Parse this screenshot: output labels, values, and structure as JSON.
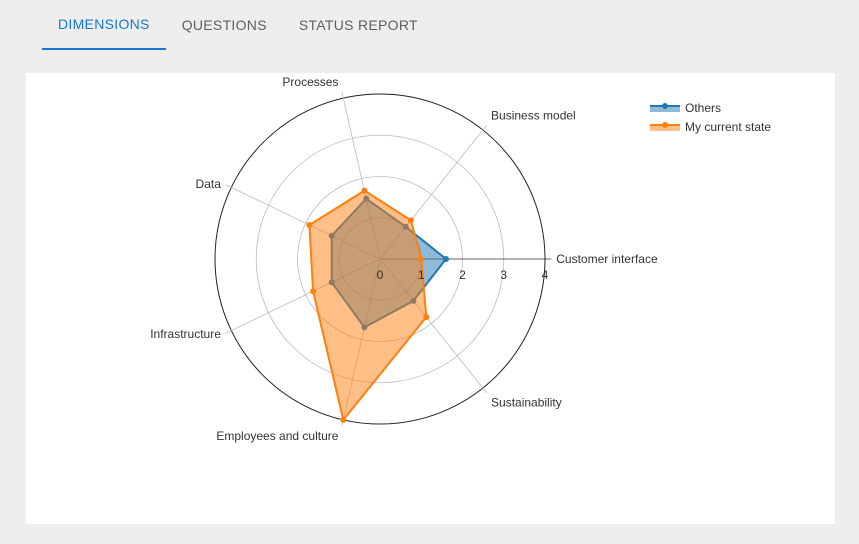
{
  "tabs": [
    {
      "label": "DIMENSIONS",
      "active": true
    },
    {
      "label": "QUESTIONS",
      "active": false
    },
    {
      "label": "STATUS REPORT",
      "active": false
    }
  ],
  "chart_data": {
    "type": "radar",
    "axes": [
      "Customer interface",
      "Business model",
      "Processes",
      "Data",
      "Infrastructure",
      "Employees and culture",
      "Sustainability"
    ],
    "rlim": [
      0,
      4
    ],
    "ticks": [
      "0",
      "1",
      "2",
      "3",
      "4"
    ],
    "grid": true,
    "legend_position": "top-right",
    "series": [
      {
        "name": "Others",
        "color": "#1f77b4",
        "values": [
          1.6,
          1.0,
          1.5,
          1.3,
          1.3,
          1.7,
          1.3
        ]
      },
      {
        "name": "My current state",
        "color": "#ff7f0e",
        "values": [
          1.0,
          1.2,
          1.7,
          1.9,
          1.8,
          4.0,
          1.8
        ]
      }
    ]
  }
}
